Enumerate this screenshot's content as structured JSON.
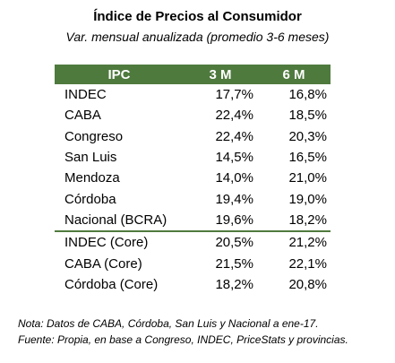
{
  "title": "Índice de Precios al Consumidor",
  "subtitle": "Var. mensual anualizada (promedio 3-6 meses)",
  "table": {
    "headers": [
      "IPC",
      "3 M",
      "6 M"
    ],
    "rows": [
      {
        "name": "INDEC",
        "m3": "17,7%",
        "m6": "16,8%"
      },
      {
        "name": "CABA",
        "m3": "22,4%",
        "m6": "18,5%"
      },
      {
        "name": "Congreso",
        "m3": "22,4%",
        "m6": "20,3%"
      },
      {
        "name": "San Luis",
        "m3": "14,5%",
        "m6": "16,5%"
      },
      {
        "name": "Mendoza",
        "m3": "14,0%",
        "m6": "21,0%"
      },
      {
        "name": "Córdoba",
        "m3": "19,4%",
        "m6": "19,0%"
      },
      {
        "name": "Nacional (BCRA)",
        "m3": "19,6%",
        "m6": "18,2%"
      }
    ],
    "core_rows": [
      {
        "name": "INDEC (Core)",
        "m3": "20,5%",
        "m6": "21,2%"
      },
      {
        "name": "CABA (Core)",
        "m3": "21,5%",
        "m6": "22,1%"
      },
      {
        "name": "Córdoba (Core)",
        "m3": "18,2%",
        "m6": "20,8%"
      }
    ],
    "header_color": "#4f7a3e"
  },
  "notes": {
    "nota": "Nota: Datos de CABA, Córdoba, San Luis y Nacional a ene-17.",
    "fuente": "Fuente: Propia, en base a Congreso, INDEC, PriceStats y provincias."
  }
}
